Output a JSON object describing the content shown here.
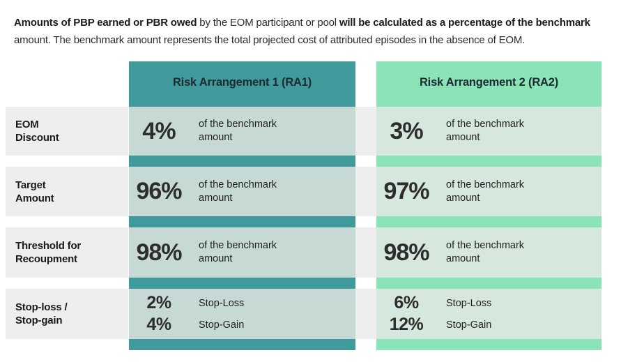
{
  "intro": {
    "bold1": "Amounts of PBP earned or PBR owed",
    "normal1": " by the EOM participant or pool ",
    "bold2": "will be calculated as a percentage of the benchmark",
    "normal2": " amount. The benchmark amount represents the total projected cost of attributed episodes in the absence of EOM."
  },
  "table": {
    "headers": {
      "ra1": "Risk Arrangement 1 (RA1)",
      "ra2": "Risk Arrangement 2 (RA2)"
    },
    "rows": [
      {
        "label": "EOM\nDiscount",
        "ra1": {
          "pct": "4%",
          "desc": "of the benchmark\namount"
        },
        "ra2": {
          "pct": "3%",
          "desc": "of the benchmark\namount"
        }
      },
      {
        "label": "Target\nAmount",
        "ra1": {
          "pct": "96%",
          "desc": "of the benchmark\namount"
        },
        "ra2": {
          "pct": "97%",
          "desc": "of the benchmark\namount"
        }
      },
      {
        "label": "Threshold for\nRecoupment",
        "ra1": {
          "pct": "98%",
          "desc": "of the benchmark\namount"
        },
        "ra2": {
          "pct": "98%",
          "desc": "of the benchmark\namount"
        }
      },
      {
        "label": "Stop-loss /\nStop-gain",
        "ra1": {
          "lines": [
            {
              "pct": "2%",
              "desc": "Stop-Loss"
            },
            {
              "pct": "4%",
              "desc": "Stop-Gain"
            }
          ]
        },
        "ra2": {
          "lines": [
            {
              "pct": "6%",
              "desc": "Stop-Loss"
            },
            {
              "pct": "12%",
              "desc": "Stop-Gain"
            }
          ]
        }
      }
    ]
  },
  "colors": {
    "ra1_column_bg": "#419A9B",
    "ra2_column_bg": "#8BE3B8",
    "ra1_cell_bg": "#C7D9D5",
    "ra2_cell_bg": "#D6E7DD",
    "label_cell_bg": "#EEEEEE",
    "row_band_bg": "#EDEDED",
    "text_dark": "#222222"
  }
}
